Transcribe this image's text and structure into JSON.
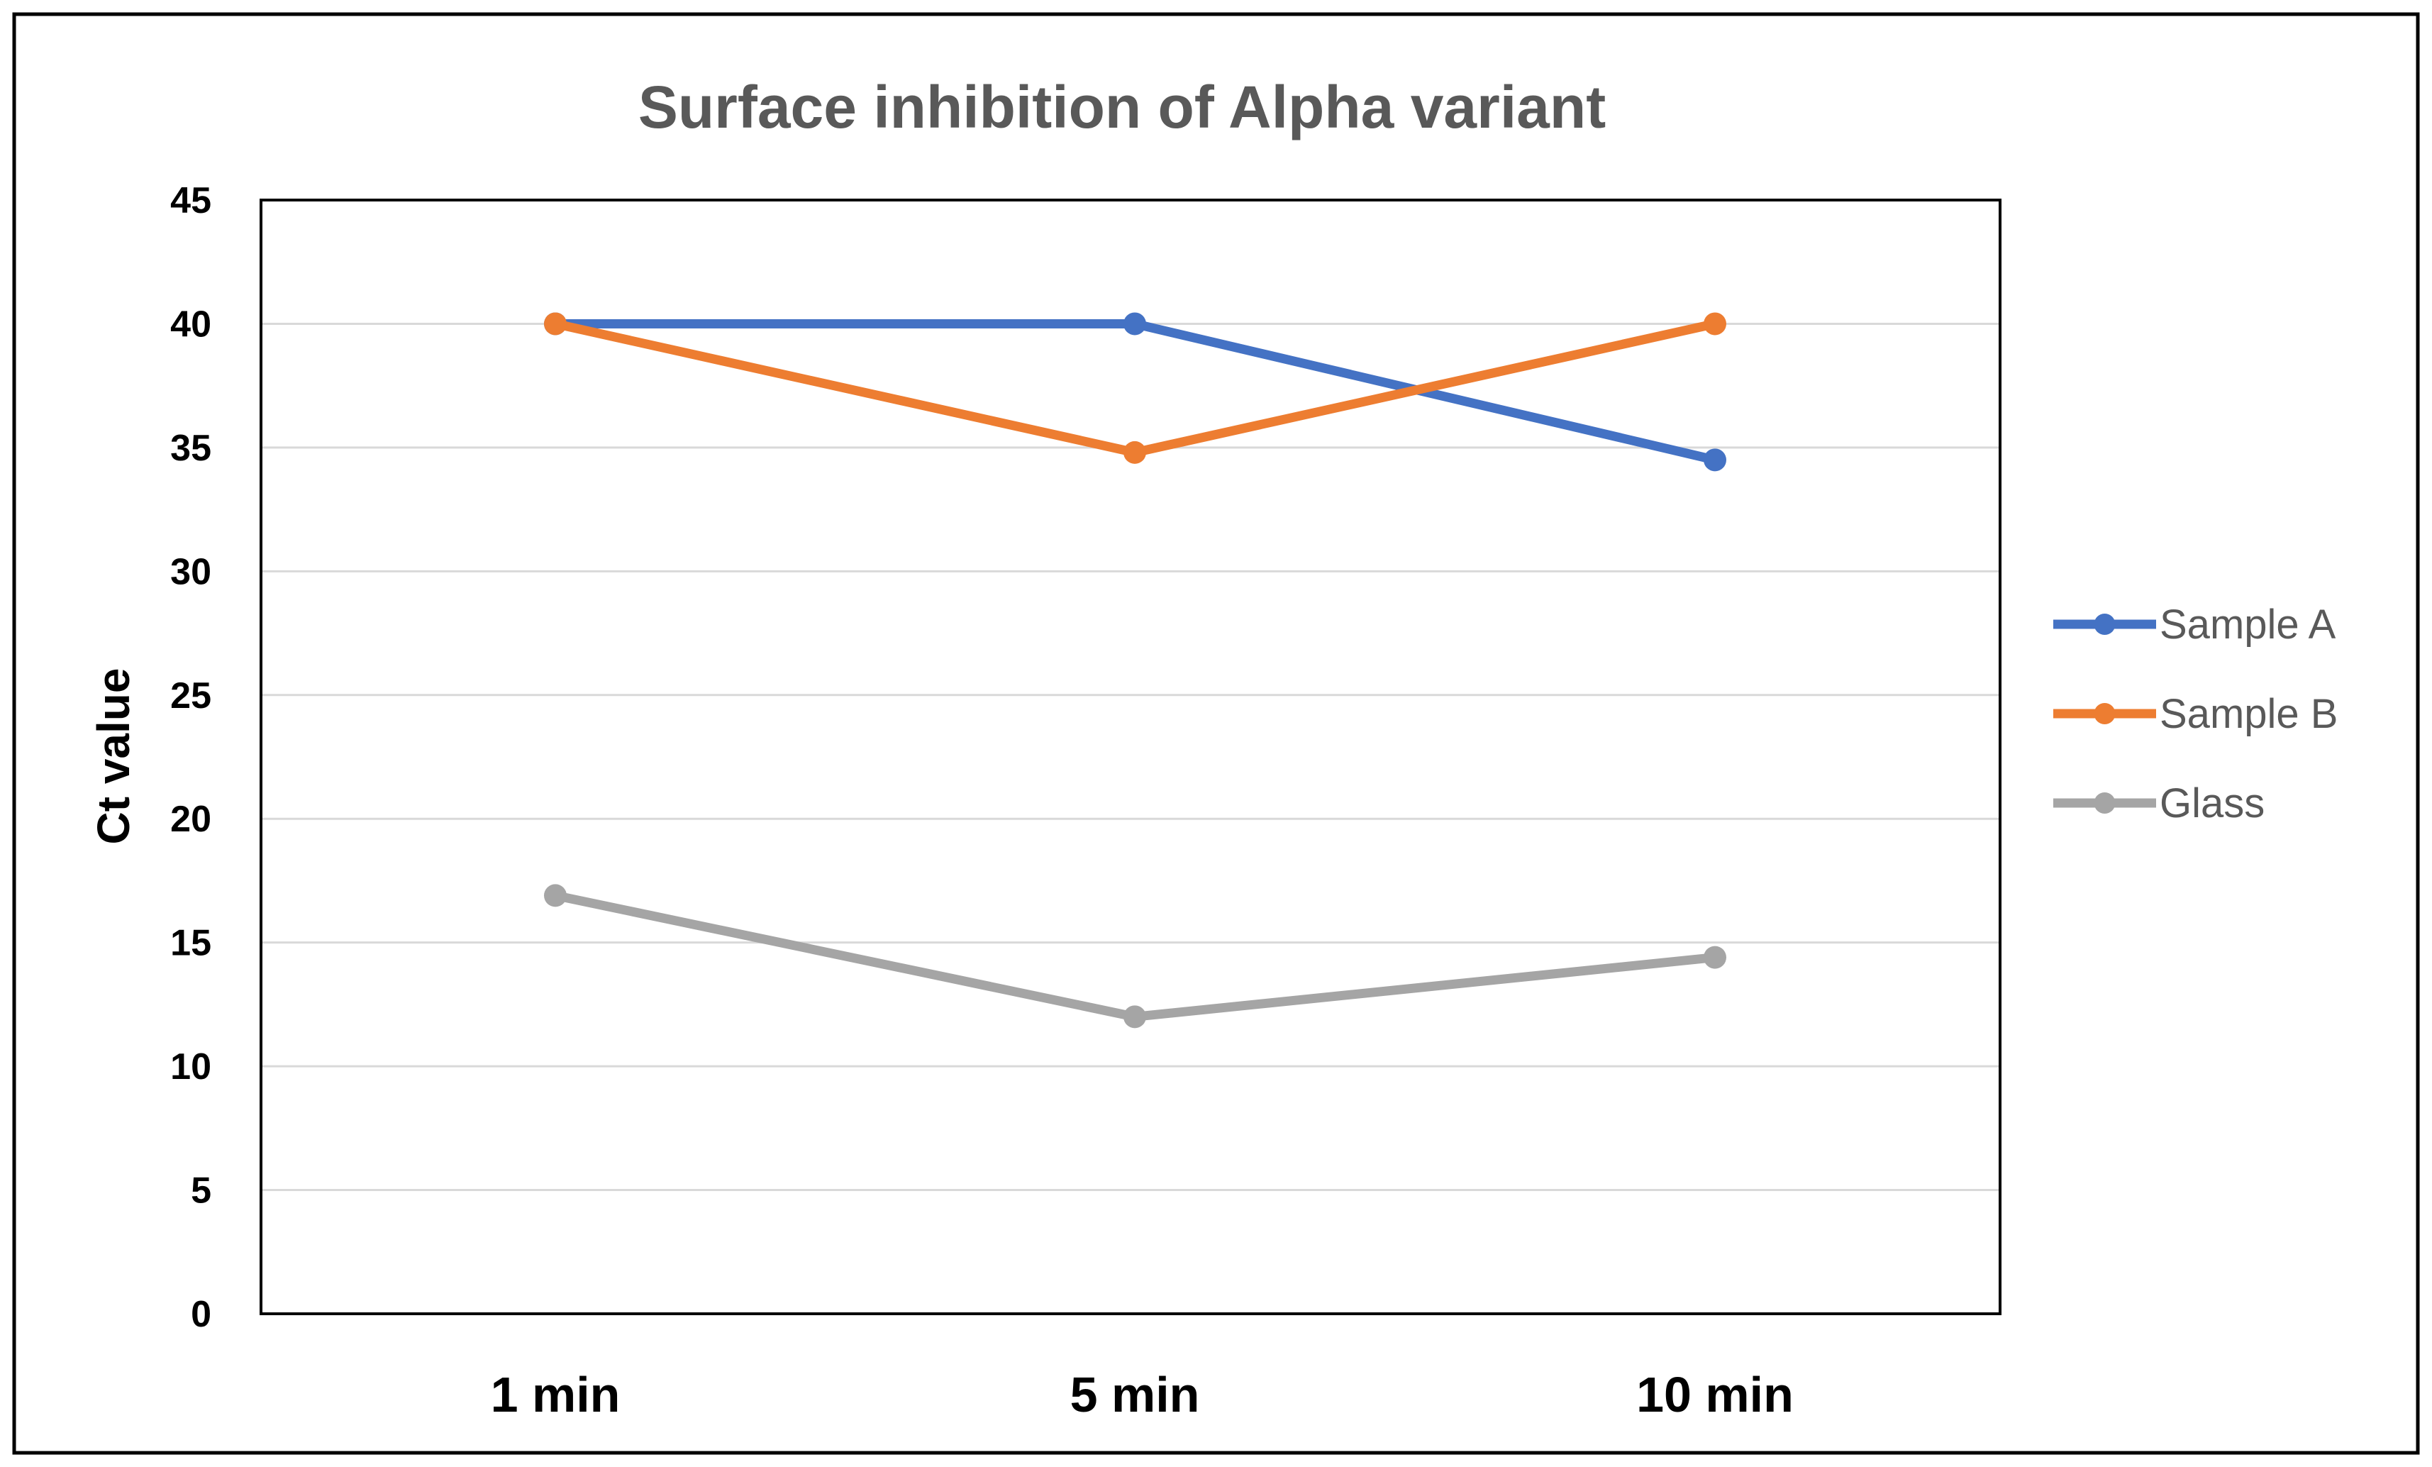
{
  "chart_data": {
    "type": "line",
    "title": "Surface inhibition  of Alpha variant",
    "xlabel": "",
    "ylabel": "Ct value",
    "categories": [
      "1 min",
      "5 min",
      "10 min"
    ],
    "ylim": [
      0,
      45
    ],
    "yticks": [
      0,
      5,
      10,
      15,
      20,
      25,
      30,
      35,
      40,
      45
    ],
    "grid": true,
    "legend_position": "right",
    "series": [
      {
        "name": "Sample A",
        "color": "#4472C4",
        "values": [
          40,
          40,
          34.5
        ]
      },
      {
        "name": "Sample B",
        "color": "#ED7D31",
        "values": [
          40,
          34.8,
          40
        ]
      },
      {
        "name": "Glass",
        "color": "#A5A5A5",
        "values": [
          16.9,
          12.0,
          14.4
        ]
      }
    ],
    "colors": {
      "frame": "#000000",
      "gridline": "#D9D9D9",
      "title": "#595959"
    }
  }
}
